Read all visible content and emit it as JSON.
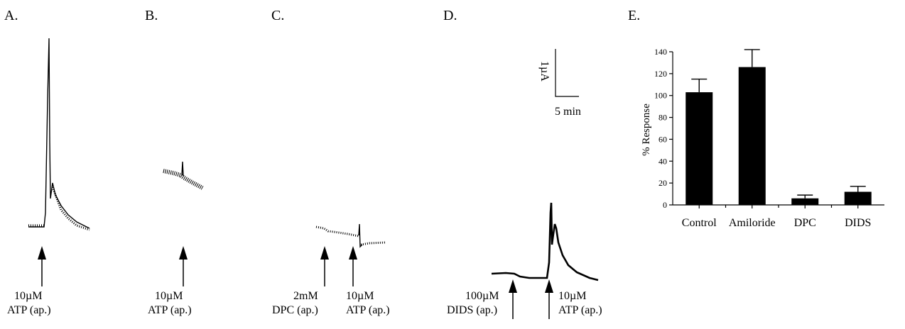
{
  "panels": {
    "A": {
      "letter": "A.",
      "stimuli": [
        {
          "line1": "10µM",
          "line2": "ATP (ap.)"
        }
      ]
    },
    "B": {
      "letter": "B.",
      "stimuli": [
        {
          "line1": "10µM",
          "line2": "ATP (ap.)"
        }
      ]
    },
    "C": {
      "letter": "C.",
      "stimuli": [
        {
          "line1": "2mM",
          "line2": "DPC (ap.)"
        },
        {
          "line1": "10µM",
          "line2": "ATP (ap.)"
        }
      ]
    },
    "D": {
      "letter": "D.",
      "stimuli": [
        {
          "line1": "100µM",
          "line2": "DIDS (ap.)"
        },
        {
          "line1": "10µM",
          "line2": "ATP (ap.)"
        }
      ],
      "scale_bar": {
        "current": "1µA",
        "time": "5 min"
      }
    },
    "E": {
      "letter": "E."
    }
  },
  "chart_data": {
    "type": "bar",
    "title": "",
    "xlabel": "",
    "ylabel": "% Response",
    "categories": [
      "Control",
      "Amiloride",
      "DPC",
      "DIDS"
    ],
    "values": [
      103,
      126,
      6,
      12
    ],
    "errors": [
      12,
      16,
      3,
      5
    ],
    "ylim": [
      0,
      140
    ],
    "yticks": [
      0,
      20,
      40,
      60,
      80,
      100,
      120,
      140
    ],
    "bar_color": "#000000",
    "grid": false,
    "legend": "none"
  }
}
